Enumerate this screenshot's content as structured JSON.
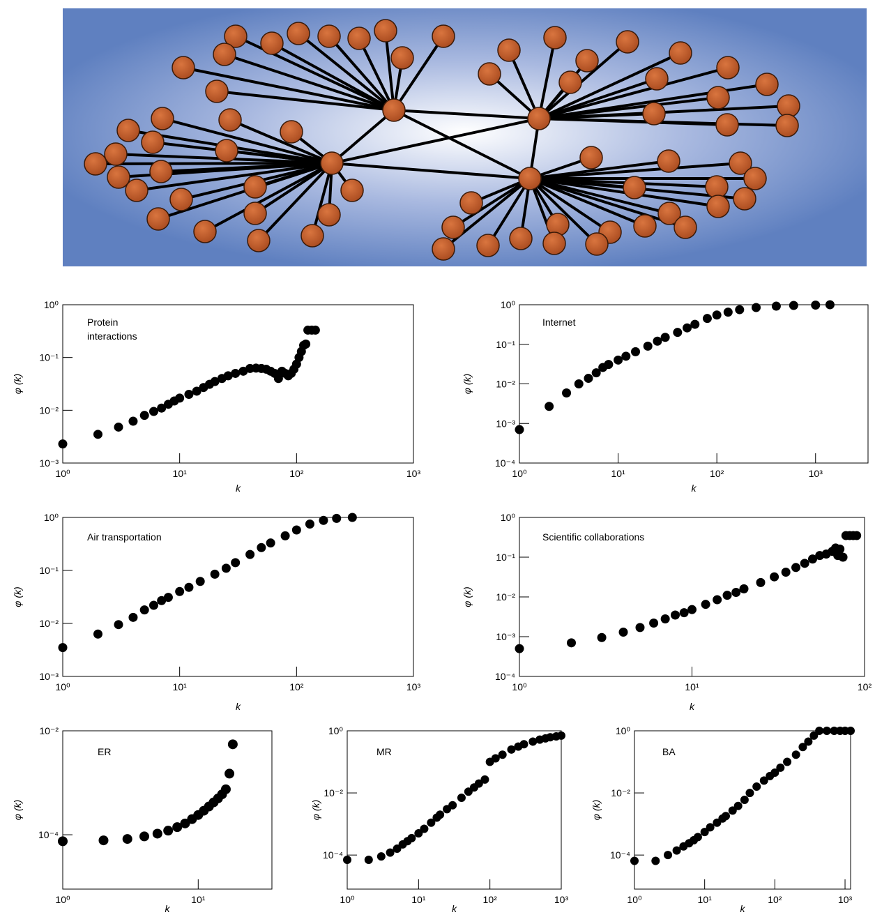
{
  "chart_data": [
    {
      "type": "scatter",
      "annotation": "Protein interactions",
      "x_label": "k",
      "y_label": "φ (k)",
      "log_x": true,
      "log_y": true,
      "color": "#000000",
      "xlim": [
        1,
        1000
      ],
      "ylim": [
        0.001,
        1
      ],
      "xticks": [
        {
          "value": 1,
          "label": "10⁰"
        },
        {
          "value": 10,
          "label": "10¹"
        },
        {
          "value": 100,
          "label": "10²"
        },
        {
          "value": 1000,
          "label": "10³"
        }
      ],
      "yticks": [
        {
          "value": 1,
          "label": "10⁰"
        },
        {
          "value": 0.1,
          "label": "10⁻¹"
        },
        {
          "value": 0.01,
          "label": "10⁻²"
        },
        {
          "value": 0.001,
          "label": "10⁻³"
        }
      ],
      "x": [
        1,
        2,
        3,
        4,
        5,
        6,
        7,
        8,
        9,
        10,
        12,
        14,
        16,
        18,
        20,
        23,
        26,
        30,
        35,
        40,
        45,
        50,
        55,
        60,
        65,
        70,
        75,
        80,
        85,
        90,
        95,
        100,
        105,
        110,
        115,
        120,
        125,
        135,
        145
      ],
      "values": [
        0.0023,
        0.0035,
        0.0048,
        0.0062,
        0.008,
        0.0095,
        0.011,
        0.013,
        0.015,
        0.017,
        0.02,
        0.023,
        0.027,
        0.031,
        0.035,
        0.04,
        0.045,
        0.05,
        0.055,
        0.062,
        0.063,
        0.062,
        0.06,
        0.055,
        0.05,
        0.04,
        0.055,
        0.05,
        0.045,
        0.05,
        0.06,
        0.075,
        0.1,
        0.13,
        0.17,
        0.18,
        0.33,
        0.33,
        0.33
      ]
    },
    {
      "type": "scatter",
      "annotation": "Internet",
      "x_label": "k",
      "y_label": "φ (k)",
      "log_x": true,
      "log_y": true,
      "color": "#000000",
      "xlim": [
        1,
        3400
      ],
      "ylim": [
        0.0001,
        1
      ],
      "xticks": [
        {
          "value": 1,
          "label": "10⁰"
        },
        {
          "value": 10,
          "label": "10¹"
        },
        {
          "value": 100,
          "label": "10²"
        },
        {
          "value": 1000,
          "label": "10³"
        }
      ],
      "yticks": [
        {
          "value": 1,
          "label": "10⁰"
        },
        {
          "value": 0.1,
          "label": "10⁻¹"
        },
        {
          "value": 0.01,
          "label": "10⁻²"
        },
        {
          "value": 0.001,
          "label": "10⁻³"
        },
        {
          "value": 0.0001,
          "label": "10⁻⁴"
        }
      ],
      "x": [
        1,
        2,
        3,
        4,
        5,
        6,
        7,
        8,
        10,
        12,
        15,
        20,
        25,
        30,
        40,
        50,
        60,
        80,
        100,
        130,
        170,
        250,
        400,
        600,
        1000,
        1400
      ],
      "values": [
        0.0007,
        0.0027,
        0.0059,
        0.01,
        0.0138,
        0.019,
        0.026,
        0.031,
        0.04,
        0.05,
        0.065,
        0.09,
        0.12,
        0.15,
        0.2,
        0.26,
        0.32,
        0.45,
        0.55,
        0.65,
        0.75,
        0.85,
        0.92,
        0.96,
        0.98,
        1.0
      ]
    },
    {
      "type": "scatter",
      "annotation": "Air transportation",
      "x_label": "k",
      "y_label": "φ (k)",
      "log_x": true,
      "log_y": true,
      "color": "#000000",
      "xlim": [
        1,
        1000
      ],
      "ylim": [
        0.001,
        1
      ],
      "xticks": [
        {
          "value": 1,
          "label": "10⁰"
        },
        {
          "value": 10,
          "label": "10¹"
        },
        {
          "value": 100,
          "label": "10²"
        },
        {
          "value": 1000,
          "label": "10³"
        }
      ],
      "yticks": [
        {
          "value": 1,
          "label": "10⁰"
        },
        {
          "value": 0.1,
          "label": "10⁻¹"
        },
        {
          "value": 0.01,
          "label": "10⁻²"
        },
        {
          "value": 0.001,
          "label": "10⁻³"
        }
      ],
      "x": [
        1,
        2,
        3,
        4,
        5,
        6,
        7,
        8,
        10,
        12,
        15,
        20,
        25,
        30,
        40,
        50,
        60,
        80,
        100,
        130,
        170,
        220,
        300
      ],
      "values": [
        0.0035,
        0.0063,
        0.0095,
        0.013,
        0.018,
        0.022,
        0.027,
        0.031,
        0.04,
        0.048,
        0.062,
        0.085,
        0.11,
        0.14,
        0.2,
        0.27,
        0.33,
        0.45,
        0.58,
        0.75,
        0.88,
        0.96,
        1.0
      ]
    },
    {
      "type": "scatter",
      "annotation": "Scientific collaborations",
      "x_label": "k",
      "y_label": "φ (k)",
      "log_x": true,
      "log_y": true,
      "color": "#000000",
      "xlim": [
        1,
        100
      ],
      "ylim": [
        0.0001,
        1
      ],
      "xticks": [
        {
          "value": 1,
          "label": "10⁰"
        },
        {
          "value": 10,
          "label": "10¹"
        },
        {
          "value": 100,
          "label": "10²"
        }
      ],
      "yticks": [
        {
          "value": 1,
          "label": "10⁰"
        },
        {
          "value": 0.1,
          "label": "10⁻¹"
        },
        {
          "value": 0.01,
          "label": "10⁻²"
        },
        {
          "value": 0.001,
          "label": "10⁻³"
        },
        {
          "value": 0.0001,
          "label": "10⁻⁴"
        }
      ],
      "x": [
        1,
        2,
        3,
        4,
        5,
        6,
        7,
        8,
        9,
        10,
        12,
        14,
        16,
        18,
        20,
        25,
        30,
        35,
        40,
        45,
        50,
        55,
        60,
        65,
        68,
        70,
        72,
        75,
        78,
        82,
        86,
        90
      ],
      "values": [
        0.0005,
        0.0007,
        0.00095,
        0.0013,
        0.0017,
        0.0022,
        0.0028,
        0.0035,
        0.004,
        0.0048,
        0.0065,
        0.0085,
        0.011,
        0.013,
        0.016,
        0.023,
        0.032,
        0.042,
        0.055,
        0.07,
        0.09,
        0.11,
        0.12,
        0.14,
        0.17,
        0.11,
        0.16,
        0.1,
        0.35,
        0.35,
        0.35,
        0.35
      ]
    },
    {
      "type": "scatter",
      "annotation": "ER",
      "x_label": "k",
      "y_label": "φ (k)",
      "log_x": true,
      "log_y": true,
      "color": "#000000",
      "xlim": [
        1,
        35
      ],
      "ylim": [
        9e-06,
        0.01
      ],
      "xticks": [
        {
          "value": 1,
          "label": "10⁰"
        },
        {
          "value": 10,
          "label": "10¹"
        }
      ],
      "yticks": [
        {
          "value": 0.01,
          "label": "10⁻²"
        },
        {
          "value": 0.0001,
          "label": "10⁻⁴"
        }
      ],
      "x": [
        1,
        2,
        3,
        4,
        5,
        6,
        7,
        8,
        9,
        10,
        11,
        12,
        13,
        14,
        15,
        16,
        17,
        18
      ],
      "values": [
        7.5e-05,
        7.8e-05,
        8.3e-05,
        9.3e-05,
        0.000105,
        0.00012,
        0.00014,
        0.000165,
        0.0002,
        0.00024,
        0.00029,
        0.00035,
        0.00042,
        0.0005,
        0.0006,
        0.00075,
        0.0015,
        0.0055
      ]
    },
    {
      "type": "scatter",
      "annotation": "MR",
      "x_label": "k",
      "y_label": "φ (k)",
      "log_x": true,
      "log_y": true,
      "color": "#000000",
      "xlim": [
        1,
        1000
      ],
      "ylim": [
        8e-06,
        1
      ],
      "xticks": [
        {
          "value": 1,
          "label": "10⁰"
        },
        {
          "value": 10,
          "label": "10¹"
        },
        {
          "value": 100,
          "label": "10²"
        },
        {
          "value": 1000,
          "label": "10³"
        }
      ],
      "yticks": [
        {
          "value": 1,
          "label": "10⁰"
        },
        {
          "value": 0.01,
          "label": "10⁻²"
        },
        {
          "value": 0.0001,
          "label": "10⁻⁴"
        }
      ],
      "x": [
        1,
        2,
        3,
        4,
        5,
        6,
        7,
        8,
        10,
        12,
        15,
        18,
        20,
        25,
        30,
        40,
        50,
        60,
        70,
        85,
        100,
        120,
        150,
        200,
        250,
        300,
        400,
        500,
        600,
        700,
        850,
        1000
      ],
      "values": [
        7e-05,
        7e-05,
        9e-05,
        0.00012,
        0.00016,
        0.00022,
        0.00028,
        0.00035,
        0.0005,
        0.0007,
        0.0011,
        0.0016,
        0.002,
        0.003,
        0.004,
        0.007,
        0.011,
        0.015,
        0.02,
        0.027,
        0.1,
        0.13,
        0.17,
        0.25,
        0.31,
        0.37,
        0.45,
        0.52,
        0.57,
        0.62,
        0.66,
        0.7
      ]
    },
    {
      "type": "scatter",
      "annotation": "BA",
      "x_label": "k",
      "y_label": "φ (k)",
      "log_x": true,
      "log_y": true,
      "color": "#000000",
      "xlim": [
        1,
        1200
      ],
      "ylim": [
        8e-06,
        1
      ],
      "xticks": [
        {
          "value": 1,
          "label": "10⁰"
        },
        {
          "value": 10,
          "label": "10¹"
        },
        {
          "value": 100,
          "label": "10²"
        },
        {
          "value": 1000,
          "label": "10³"
        }
      ],
      "yticks": [
        {
          "value": 1,
          "label": "10⁰"
        },
        {
          "value": 0.01,
          "label": "10⁻²"
        },
        {
          "value": 0.0001,
          "label": "10⁻⁴"
        }
      ],
      "x": [
        1,
        2,
        3,
        4,
        5,
        6,
        7,
        8,
        10,
        12,
        15,
        18,
        20,
        25,
        30,
        37,
        44,
        55,
        70,
        85,
        100,
        120,
        150,
        200,
        250,
        300,
        360,
        430,
        550,
        700,
        850,
        1000,
        1200
      ],
      "values": [
        6.5e-05,
        6.5e-05,
        0.0001,
        0.00014,
        0.00019,
        0.00024,
        0.0003,
        0.00038,
        0.00055,
        0.00078,
        0.0011,
        0.0015,
        0.0018,
        0.0027,
        0.0038,
        0.006,
        0.01,
        0.016,
        0.025,
        0.035,
        0.045,
        0.065,
        0.1,
        0.17,
        0.3,
        0.45,
        0.7,
        1.0,
        1.0,
        1.0,
        1.0,
        1.0,
        1.0
      ]
    }
  ]
}
